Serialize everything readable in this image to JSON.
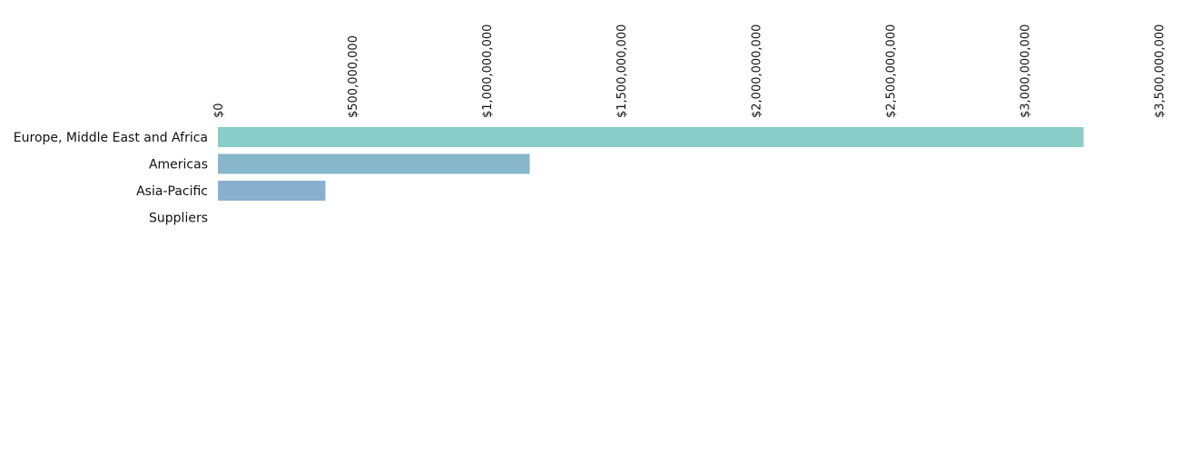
{
  "chart_data": {
    "type": "bar",
    "orientation": "horizontal",
    "categories": [
      "Europe, Middle East and Africa",
      "Americas",
      "Asia-Pacific",
      "Suppliers"
    ],
    "values": [
      3220000000,
      1160000000,
      400000000,
      0
    ],
    "title": "",
    "xlabel": "",
    "ylabel": "",
    "xlim": [
      0,
      3500000000
    ],
    "x_ticks": [
      0,
      500000000,
      1000000000,
      1500000000,
      2000000000,
      2500000000,
      3000000000,
      3500000000
    ],
    "x_tick_labels": [
      "$0",
      "$500,000,000",
      "$1,000,000,000",
      "$1,500,000,000",
      "$2,000,000,000",
      "$2,500,000,000",
      "$3,000,000,000",
      "$3,500,000,000"
    ],
    "x_axis_position": "top",
    "grid": false,
    "legend": "none",
    "colors": [
      "#88cdc7",
      "#88b7cc",
      "#8aaecd",
      "#8aaecd"
    ]
  }
}
